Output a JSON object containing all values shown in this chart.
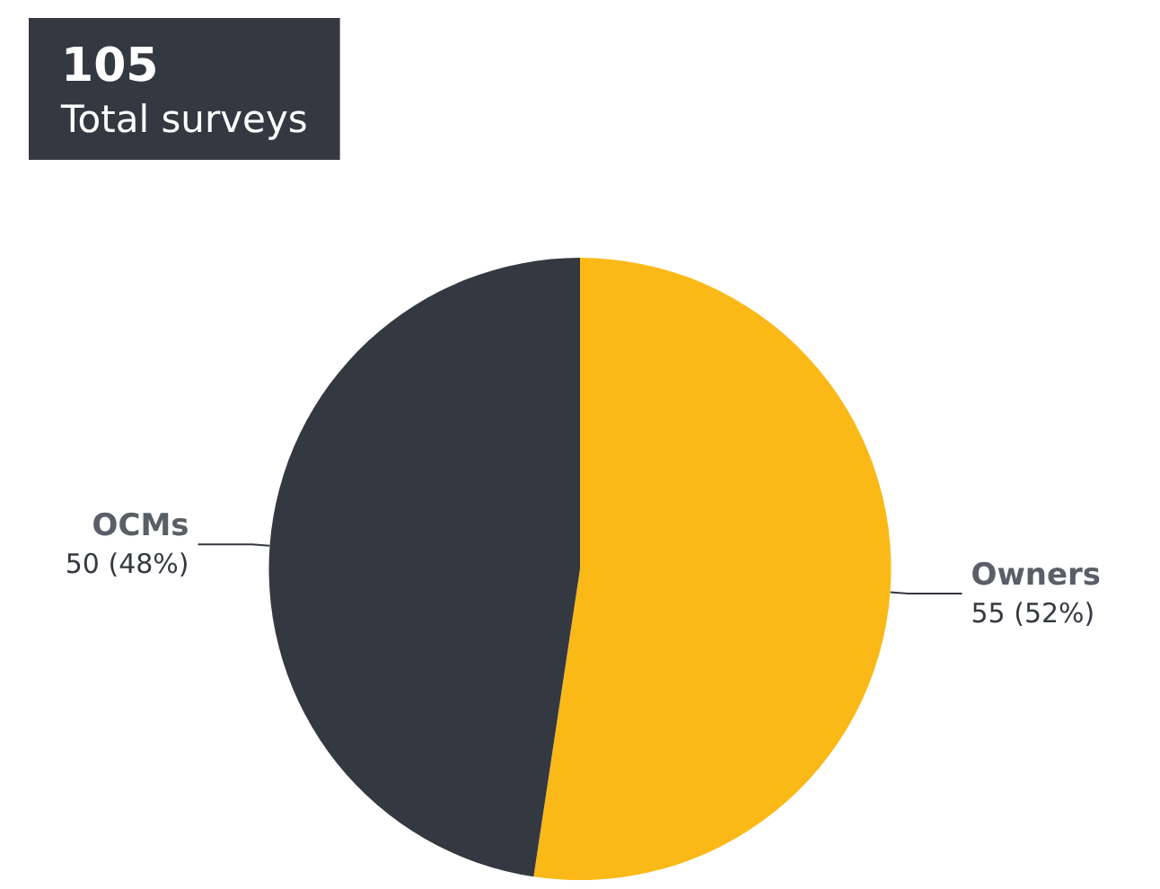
{
  "chart_data": {
    "type": "pie",
    "title": "105",
    "subtitle": "Total surveys",
    "categories": [
      "Owners",
      "OCMs"
    ],
    "values": [
      55,
      50
    ],
    "value_labels": [
      "55 (52%)",
      "50 (48%)"
    ],
    "colors": [
      "#fbb917",
      "#343840"
    ],
    "legend": false
  }
}
